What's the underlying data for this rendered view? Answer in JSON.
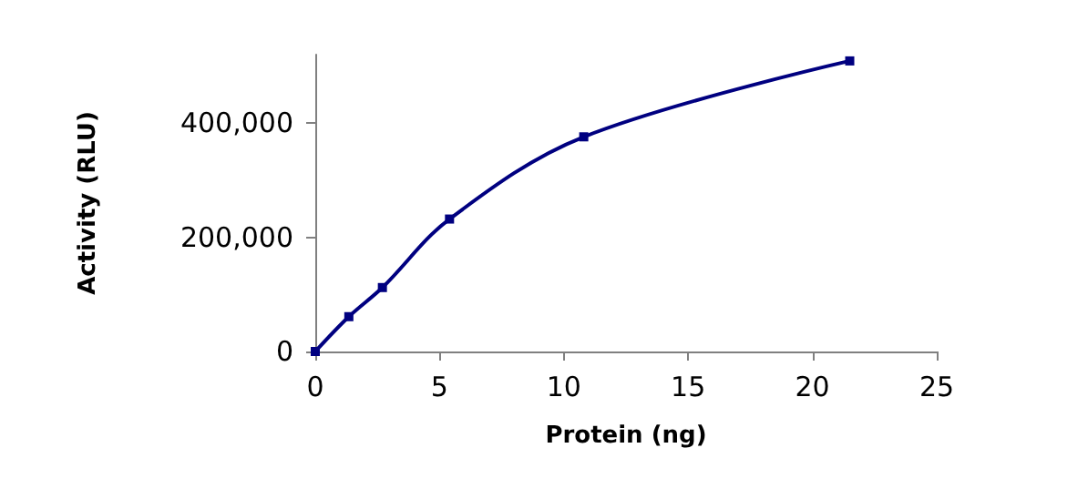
{
  "chart_data": {
    "type": "line",
    "xlabel": "Protein (ng)",
    "ylabel": "Activity (RLU)",
    "x": [
      0,
      1.35,
      2.7,
      5.4,
      10.8,
      21.5
    ],
    "series": [
      {
        "color": "#000080",
        "values": [
          0,
          61000,
          112000,
          232000,
          376000,
          509000
        ]
      }
    ],
    "xlim": [
      0,
      25
    ],
    "xticks": [
      0,
      5,
      10,
      15,
      20,
      25
    ],
    "ylim": [
      0,
      520000
    ],
    "yticks": [
      0,
      {
        "value": 200000,
        "label": "200,000"
      },
      {
        "value": 400000,
        "label": "400,000"
      }
    ],
    "marker": "square",
    "line_style": "solid",
    "grid": false
  }
}
